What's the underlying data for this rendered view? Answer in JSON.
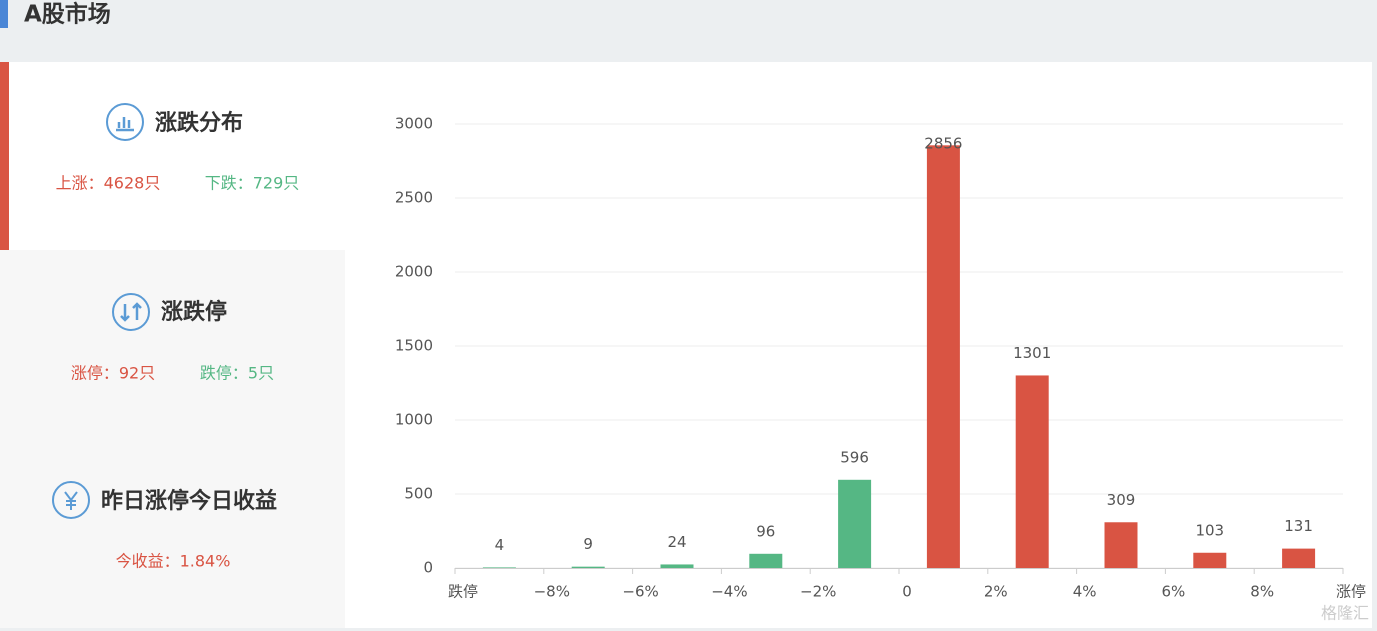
{
  "header": {
    "title": "A股市场"
  },
  "sidebar": [
    {
      "title": "涨跌分布",
      "items": [
        "上涨：4628只",
        "下跌：729只"
      ]
    },
    {
      "title": "涨跌停",
      "items": [
        "涨停：92只",
        "跌停：5只"
      ]
    },
    {
      "title": "昨日涨停今日收益",
      "items": [
        "今收益：1.84%"
      ]
    }
  ],
  "chart_data": {
    "type": "bar",
    "bin_labels": [
      "跌停",
      "−8%",
      "−6%",
      "−4%",
      "−2%",
      "0",
      "2%",
      "4%",
      "6%",
      "8%",
      "涨停"
    ],
    "values": [
      4,
      9,
      24,
      96,
      596,
      2856,
      1301,
      309,
      103,
      131
    ],
    "colors": [
      "#55b784",
      "#55b784",
      "#55b784",
      "#55b784",
      "#55b784",
      "#d95443",
      "#d95443",
      "#d95443",
      "#d95443",
      "#d95443"
    ],
    "ylim": [
      0,
      3000
    ],
    "yticks": [
      0,
      500,
      1000,
      1500,
      2000,
      2500,
      3000
    ],
    "grid": true
  },
  "watermark": "格隆汇"
}
